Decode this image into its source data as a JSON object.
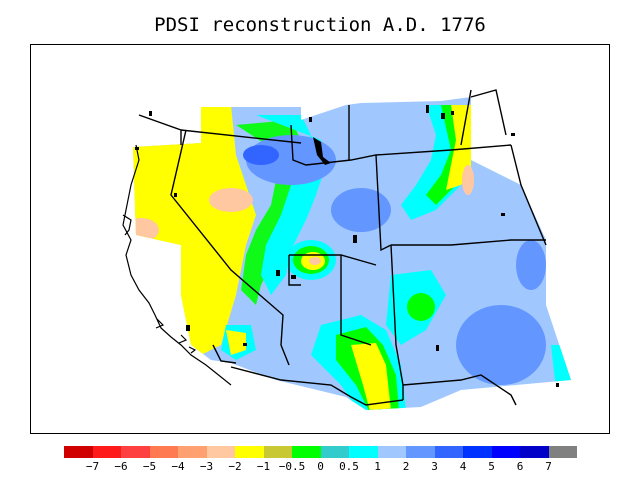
{
  "title": "PDSI reconstruction A.D. 1776",
  "colorbar": {
    "colors": [
      "#d00000",
      "#ff1a1a",
      "#ff4040",
      "#ff7a50",
      "#ffa070",
      "#ffc8a0",
      "#ffff00",
      "#c8c832",
      "#00ff00",
      "#33cccc",
      "#00ffff",
      "#a0c8ff",
      "#6496ff",
      "#3264ff",
      "#0032ff",
      "#0000ff",
      "#0000c8",
      "#808080"
    ],
    "labels": [
      "−7",
      "−6",
      "−5",
      "−4",
      "−3",
      "−2",
      "−1",
      "−0.5",
      "0",
      "0.5",
      "1",
      "2",
      "3",
      "4",
      "5",
      "6",
      "7"
    ]
  },
  "legend": {
    "levels": [
      "−7",
      "−6",
      "−5",
      "−4",
      "−3",
      "−2",
      "−1",
      "−0.5",
      "0",
      "0.5",
      "1",
      "2",
      "3",
      "4",
      "5",
      "6",
      "7"
    ]
  }
}
